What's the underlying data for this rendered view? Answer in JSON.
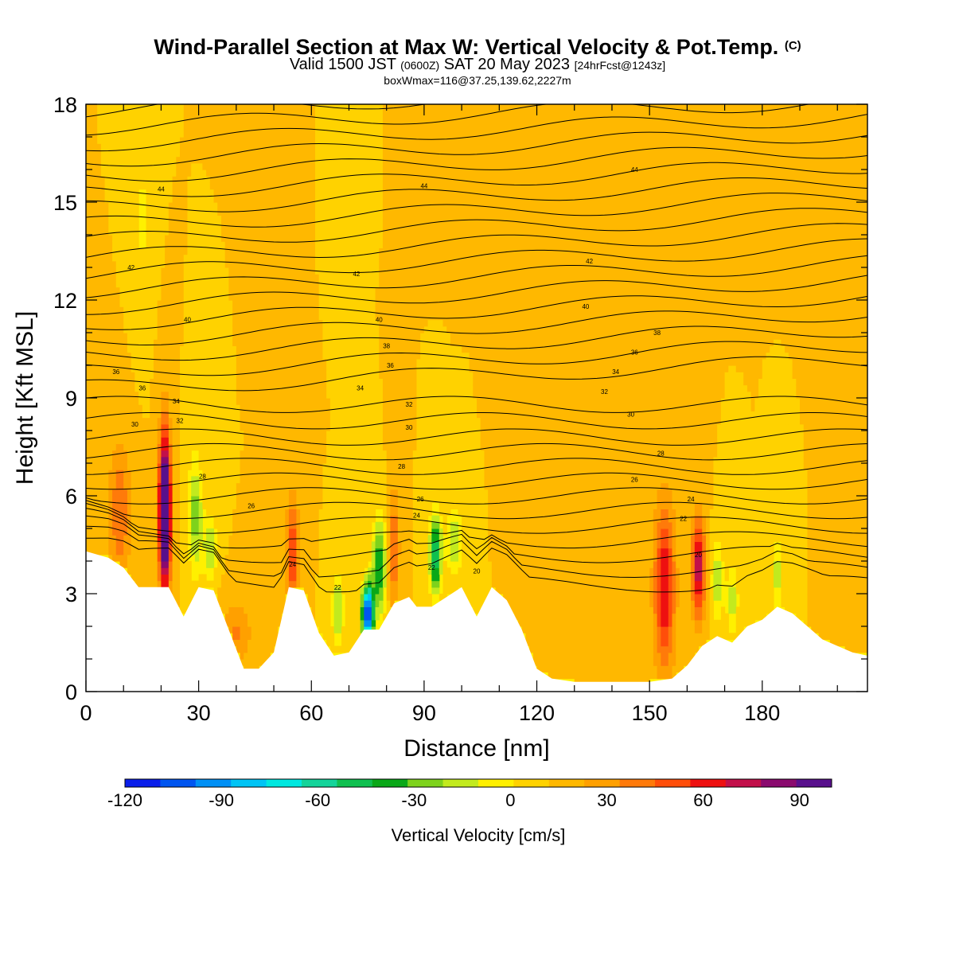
{
  "title": {
    "main": "Wind-Parallel Section at Max W: Vertical Velocity & Pot.Temp.",
    "copyright": "(C)",
    "valid_prefix": "Valid 1500 JST",
    "valid_utc": "(0600Z)",
    "valid_date": "SAT 20 May 2023",
    "forecast": "[24hrFcst@1243z]",
    "box_info": "boxWmax=116@37.25,139.62,2227m"
  },
  "chart_data": {
    "type": "heatmap",
    "xlabel": "Distance [nm]",
    "ylabel": "Height [Kft MSL]",
    "xlim": [
      0,
      208
    ],
    "ylim": [
      0,
      18
    ],
    "x_ticks": [
      0,
      30,
      60,
      90,
      120,
      150,
      180
    ],
    "y_ticks": [
      0,
      3,
      6,
      9,
      12,
      15,
      18
    ],
    "colorbar": {
      "label": "Vertical Velocity [cm/s]",
      "min": -120,
      "max": 100,
      "step": 10,
      "tick_labels": [
        -120,
        -90,
        -60,
        -30,
        0,
        30,
        60,
        90
      ],
      "colors": [
        "#0a1eea",
        "#0055f0",
        "#0090f5",
        "#00c4f5",
        "#00e8e0",
        "#14d49a",
        "#10c050",
        "#0aa818",
        "#7ed21c",
        "#c2ea1e",
        "#fff000",
        "#ffd200",
        "#ffb800",
        "#ffa000",
        "#ff7a0a",
        "#ff4e0a",
        "#ee1010",
        "#c2104a",
        "#8a0a6e",
        "#58108c"
      ]
    },
    "terrain_kft": [
      [
        0,
        4.3
      ],
      [
        6,
        4.1
      ],
      [
        10,
        3.8
      ],
      [
        14,
        3.2
      ],
      [
        22,
        3.2
      ],
      [
        26,
        2.3
      ],
      [
        30,
        3.2
      ],
      [
        34,
        3.1
      ],
      [
        38,
        1.9
      ],
      [
        42,
        0.7
      ],
      [
        46,
        0.7
      ],
      [
        50,
        1.2
      ],
      [
        54,
        3.2
      ],
      [
        58,
        3.1
      ],
      [
        62,
        1.8
      ],
      [
        66,
        1.1
      ],
      [
        70,
        1.2
      ],
      [
        74,
        1.9
      ],
      [
        78,
        1.9
      ],
      [
        82,
        2.7
      ],
      [
        86,
        2.9
      ],
      [
        88,
        2.6
      ],
      [
        92,
        2.6
      ],
      [
        96,
        2.9
      ],
      [
        100,
        3.2
      ],
      [
        104,
        2.3
      ],
      [
        108,
        3.2
      ],
      [
        112,
        2.8
      ],
      [
        116,
        1.9
      ],
      [
        120,
        0.7
      ],
      [
        124,
        0.4
      ],
      [
        130,
        0.3
      ],
      [
        140,
        0.3
      ],
      [
        150,
        0.3
      ],
      [
        156,
        0.4
      ],
      [
        160,
        0.8
      ],
      [
        164,
        1.4
      ],
      [
        168,
        1.7
      ],
      [
        172,
        1.5
      ],
      [
        176,
        2.0
      ],
      [
        180,
        2.2
      ],
      [
        184,
        2.6
      ],
      [
        188,
        2.4
      ],
      [
        192,
        2.0
      ],
      [
        196,
        1.6
      ],
      [
        200,
        1.4
      ],
      [
        204,
        1.2
      ],
      [
        208,
        1.1
      ]
    ],
    "w_features": [
      {
        "x": 21,
        "z": 5.5,
        "sx": 1.6,
        "sz": 2.4,
        "w": 110
      },
      {
        "x": 9,
        "z": 5.5,
        "sx": 3,
        "sz": 2,
        "w": 30
      },
      {
        "x": 29,
        "z": 5.4,
        "sx": 2,
        "sz": 1.8,
        "w": -35
      },
      {
        "x": 33,
        "z": 4.4,
        "sx": 1.8,
        "sz": 1,
        "w": -30
      },
      {
        "x": 40,
        "z": 1.8,
        "sx": 4,
        "sz": 1,
        "w": 22
      },
      {
        "x": 55,
        "z": 4.2,
        "sx": 1.8,
        "sz": 1.8,
        "w": 38
      },
      {
        "x": 67,
        "z": 2.5,
        "sx": 1.6,
        "sz": 1,
        "w": -32
      },
      {
        "x": 75,
        "z": 2.4,
        "sx": 1.5,
        "sz": 0.9,
        "w": -115
      },
      {
        "x": 78,
        "z": 3.8,
        "sx": 1.8,
        "sz": 1.5,
        "w": -50
      },
      {
        "x": 82,
        "z": 4.4,
        "sx": 1.4,
        "sz": 1.8,
        "w": 32
      },
      {
        "x": 93,
        "z": 4.2,
        "sx": 1.6,
        "sz": 1.2,
        "w": -65
      },
      {
        "x": 98,
        "z": 4.6,
        "sx": 2,
        "sz": 1,
        "w": -30
      },
      {
        "x": 154,
        "z": 3.2,
        "sx": 2.8,
        "sz": 2.6,
        "w": 50
      },
      {
        "x": 163,
        "z": 3.8,
        "sx": 1.8,
        "sz": 1.6,
        "w": 58
      },
      {
        "x": 168,
        "z": 3.4,
        "sx": 1.6,
        "sz": 1.2,
        "w": -28
      },
      {
        "x": 172,
        "z": 2.8,
        "sx": 1.6,
        "sz": 1.2,
        "w": -25
      },
      {
        "x": 184,
        "z": 3.6,
        "sx": 1.4,
        "sz": 1.2,
        "w": -25
      },
      {
        "x": 15,
        "z": 14.5,
        "sx": 2,
        "sz": 2.5,
        "w": -12
      },
      {
        "x": 70,
        "z": 16.5,
        "sx": 1.6,
        "sz": 1.6,
        "w": -10
      },
      {
        "x": 113,
        "z": 14.5,
        "sx": 2,
        "sz": 2.8,
        "w": 8
      }
    ],
    "theta_labels": [
      {
        "text": "44",
        "x": 20,
        "z": 15.4
      },
      {
        "text": "44",
        "x": 90,
        "z": 15.5
      },
      {
        "text": "44",
        "x": 146,
        "z": 16.0
      },
      {
        "text": "42",
        "x": 12,
        "z": 13.0
      },
      {
        "text": "42",
        "x": 72,
        "z": 12.8
      },
      {
        "text": "42",
        "x": 134,
        "z": 13.2
      },
      {
        "text": "40",
        "x": 27,
        "z": 11.4
      },
      {
        "text": "40",
        "x": 78,
        "z": 11.4
      },
      {
        "text": "40",
        "x": 133,
        "z": 11.8
      },
      {
        "text": "38",
        "x": 80,
        "z": 10.6
      },
      {
        "text": "38",
        "x": 152,
        "z": 11.0
      },
      {
        "text": "36",
        "x": 8,
        "z": 9.8
      },
      {
        "text": "36",
        "x": 81,
        "z": 10.0
      },
      {
        "text": "36",
        "x": 146,
        "z": 10.4
      },
      {
        "text": "36",
        "x": 15,
        "z": 9.3
      },
      {
        "text": "34",
        "x": 73,
        "z": 9.3
      },
      {
        "text": "34",
        "x": 141,
        "z": 9.8
      },
      {
        "text": "34",
        "x": 24,
        "z": 8.9
      },
      {
        "text": "32",
        "x": 86,
        "z": 8.8
      },
      {
        "text": "32",
        "x": 138,
        "z": 9.2
      },
      {
        "text": "30",
        "x": 13,
        "z": 8.2
      },
      {
        "text": "32",
        "x": 25,
        "z": 8.3
      },
      {
        "text": "30",
        "x": 86,
        "z": 8.1
      },
      {
        "text": "30",
        "x": 145,
        "z": 8.5
      },
      {
        "text": "28",
        "x": 31,
        "z": 6.6
      },
      {
        "text": "28",
        "x": 84,
        "z": 6.9
      },
      {
        "text": "28",
        "x": 153,
        "z": 7.3
      },
      {
        "text": "26",
        "x": 44,
        "z": 5.7
      },
      {
        "text": "26",
        "x": 89,
        "z": 5.9
      },
      {
        "text": "26",
        "x": 146,
        "z": 6.5
      },
      {
        "text": "24",
        "x": 88,
        "z": 5.4
      },
      {
        "text": "24",
        "x": 161,
        "z": 5.9
      },
      {
        "text": "24",
        "x": 55,
        "z": 3.9
      },
      {
        "text": "22",
        "x": 159,
        "z": 5.3
      },
      {
        "text": "22",
        "x": 67,
        "z": 3.2
      },
      {
        "text": "22",
        "x": 92,
        "z": 3.8
      },
      {
        "text": "20",
        "x": 104,
        "z": 3.7
      },
      {
        "text": "20",
        "x": 163,
        "z": 4.2
      }
    ]
  }
}
